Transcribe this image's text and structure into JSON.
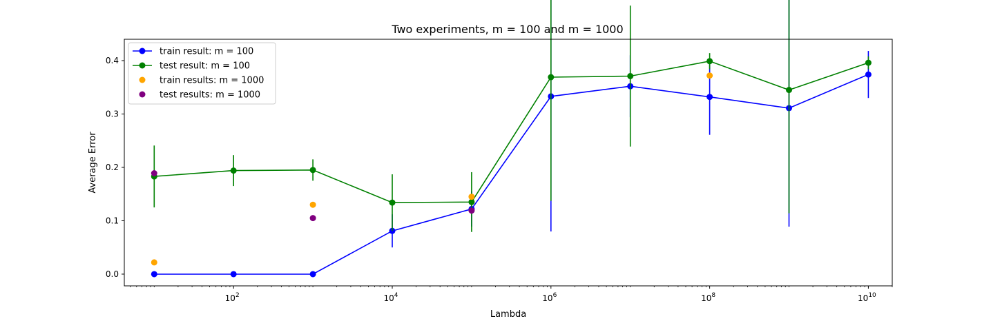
{
  "chart_data": {
    "type": "line",
    "title": "Two experiments, m = 100 and m = 1000",
    "xlabel": "Lambda",
    "ylabel": "Average Error",
    "xscale": "log",
    "xlim": [
      4.2,
      20000000000.0
    ],
    "ylim": [
      -0.022,
      0.44
    ],
    "x_ticks": [
      {
        "value": 100,
        "base": "10",
        "exp": "2"
      },
      {
        "value": 10000,
        "base": "10",
        "exp": "4"
      },
      {
        "value": 1000000,
        "base": "10",
        "exp": "6"
      },
      {
        "value": 100000000,
        "base": "10",
        "exp": "8"
      },
      {
        "value": 10000000000,
        "base": "10",
        "exp": "10"
      }
    ],
    "y_ticks": [
      {
        "value": 0.0,
        "label": "0.0"
      },
      {
        "value": 0.1,
        "label": "0.1"
      },
      {
        "value": 0.2,
        "label": "0.2"
      },
      {
        "value": 0.3,
        "label": "0.3"
      },
      {
        "value": 0.4,
        "label": "0.4"
      }
    ],
    "grid": false,
    "legend_position": "upper-left",
    "series": [
      {
        "name": "train result: m = 100",
        "kind": "line-errorbar",
        "color": "#0000ff",
        "x": [
          10,
          100,
          1000,
          10000,
          100000,
          1000000,
          10000000,
          100000000,
          1000000000,
          10000000000
        ],
        "y": [
          0.0,
          0.0,
          0.0,
          0.081,
          0.122,
          0.333,
          0.352,
          0.332,
          0.311,
          0.374
        ],
        "err": [
          0.0,
          0.0,
          0.0,
          0.031,
          0.033,
          0.253,
          0.058,
          0.071,
          0.222,
          0.044
        ]
      },
      {
        "name": "test result: m = 100",
        "kind": "line-errorbar",
        "color": "#008000",
        "x": [
          10,
          100,
          1000,
          10000,
          100000,
          1000000,
          10000000,
          100000000,
          1000000000,
          10000000000
        ],
        "y": [
          0.183,
          0.194,
          0.195,
          0.134,
          0.135,
          0.369,
          0.371,
          0.399,
          0.345,
          0.396
        ],
        "err": [
          0.058,
          0.029,
          0.02,
          0.053,
          0.056,
          0.232,
          0.132,
          0.015,
          0.231,
          0.012
        ]
      },
      {
        "name": "train results: m = 1000",
        "kind": "scatter",
        "color": "#ffa500",
        "x": [
          10,
          1000,
          100000,
          100000000
        ],
        "y": [
          0.022,
          0.13,
          0.145,
          0.372
        ]
      },
      {
        "name": "test results: m = 1000",
        "kind": "scatter",
        "color": "#800080",
        "x": [
          10,
          1000,
          100000
        ],
        "y": [
          0.189,
          0.105,
          0.119
        ]
      }
    ]
  }
}
